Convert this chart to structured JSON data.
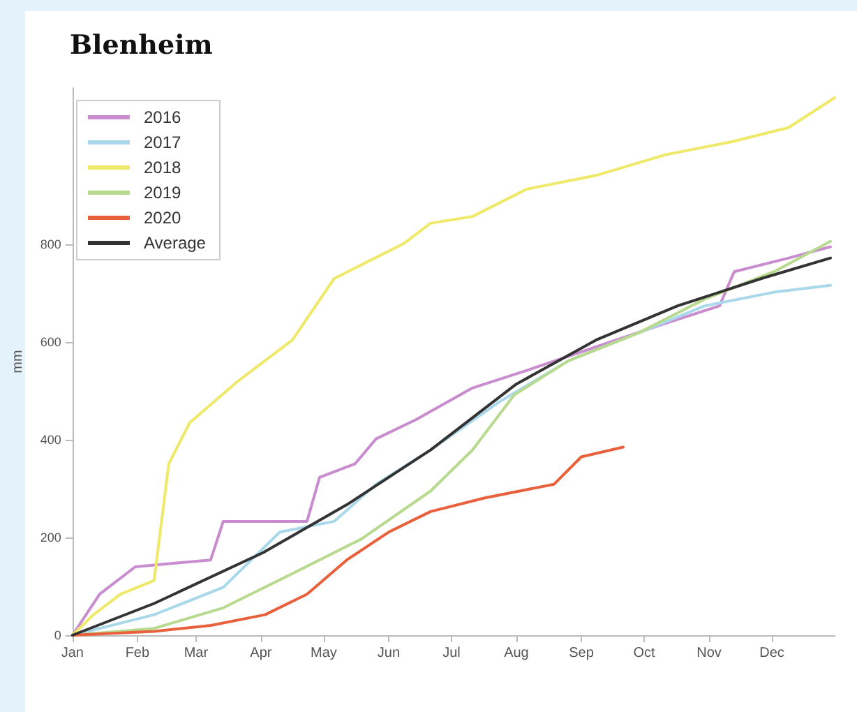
{
  "chart_data": {
    "type": "line",
    "title": "Blenheim",
    "ylabel": "mm",
    "legend": "top left",
    "grid": false,
    "xlim": [
      "--01-01",
      "--12-31"
    ],
    "xticks": [
      {
        "value": "--01-01",
        "label": "Jan"
      },
      {
        "value": "--02-01",
        "label": "Feb"
      },
      {
        "value": "--03-01",
        "label": "Mar"
      },
      {
        "value": "--04-01",
        "label": "Apr"
      },
      {
        "value": "--05-01",
        "label": "May"
      },
      {
        "value": "--06-01",
        "label": "Jun"
      },
      {
        "value": "--07-01",
        "label": "Jul"
      },
      {
        "value": "--08-01",
        "label": "Aug"
      },
      {
        "value": "--09-01",
        "label": "Sep"
      },
      {
        "value": "--10-01",
        "label": "Oct"
      },
      {
        "value": "--11-01",
        "label": "Nov"
      },
      {
        "value": "--12-01",
        "label": "Dec"
      }
    ],
    "ylim": [
      0,
      1120
    ],
    "yticks": [
      0,
      200,
      400,
      600,
      800
    ],
    "series": [
      {
        "name": "2016",
        "color": "#c98ccf",
        "x": [
          "--01-01",
          "--01-14",
          "--01-31",
          "--03-08",
          "--03-14",
          "--04-23",
          "--04-29",
          "--05-16",
          "--05-26",
          "--06-14",
          "--07-11",
          "--08-06",
          "--09-08",
          "--10-11",
          "--11-06",
          "--11-13",
          "--12-09",
          "--12-29"
        ],
        "values": [
          0,
          84,
          140,
          154,
          233,
          233,
          323,
          351,
          402,
          441,
          506,
          542,
          590,
          638,
          674,
          744,
          772,
          795
        ]
      },
      {
        "name": "2017",
        "color": "#a9d8ea",
        "x": [
          "--01-01",
          "--02-09",
          "--03-14",
          "--04-10",
          "--05-06",
          "--05-26",
          "--06-21",
          "--07-24",
          "--08-26",
          "--09-28",
          "--10-30",
          "--12-02",
          "--12-29"
        ],
        "values": [
          0,
          42,
          98,
          211,
          233,
          309,
          379,
          478,
          562,
          618,
          674,
          702,
          716
        ]
      },
      {
        "name": "2018",
        "color": "#efe96a",
        "x": [
          "--01-01",
          "--01-11",
          "--01-24",
          "--02-09",
          "--02-16",
          "--02-26",
          "--03-21",
          "--04-03",
          "--04-16",
          "--05-06",
          "--05-19",
          "--06-08",
          "--06-21",
          "--07-11",
          "--08-06",
          "--09-08",
          "--10-11",
          "--11-13",
          "--12-09",
          "--12-31"
        ],
        "values": [
          0,
          42,
          84,
          112,
          351,
          435,
          520,
          562,
          604,
          730,
          758,
          801,
          843,
          857,
          913,
          941,
          983,
          1011,
          1039,
          1100
        ]
      },
      {
        "name": "2019",
        "color": "#b7da8e",
        "x": [
          "--01-01",
          "--02-09",
          "--03-14",
          "--04-16",
          "--05-19",
          "--06-21",
          "--07-11",
          "--07-31",
          "--08-26",
          "--09-28",
          "--10-30",
          "--12-02",
          "--12-29"
        ],
        "values": [
          0,
          14,
          56,
          126,
          197,
          295,
          379,
          492,
          562,
          618,
          688,
          744,
          806
        ]
      },
      {
        "name": "2020",
        "color": "#e8603c",
        "x": [
          "--01-01",
          "--02-09",
          "--03-08",
          "--04-03",
          "--04-23",
          "--05-12",
          "--06-01",
          "--06-21",
          "--07-17",
          "--08-19",
          "--09-01",
          "--09-21"
        ],
        "values": [
          0,
          8,
          20,
          42,
          84,
          154,
          211,
          253,
          281,
          309,
          365,
          385
        ]
      },
      {
        "name": "Average",
        "color": "#333333",
        "x": [
          "--01-01",
          "--02-09",
          "--04-02",
          "--05-12",
          "--06-21",
          "--08-01",
          "--09-08",
          "--10-17",
          "--11-26",
          "--12-29"
        ],
        "values": [
          0,
          65,
          169,
          267,
          379,
          514,
          604,
          674,
          730,
          772
        ]
      }
    ]
  }
}
